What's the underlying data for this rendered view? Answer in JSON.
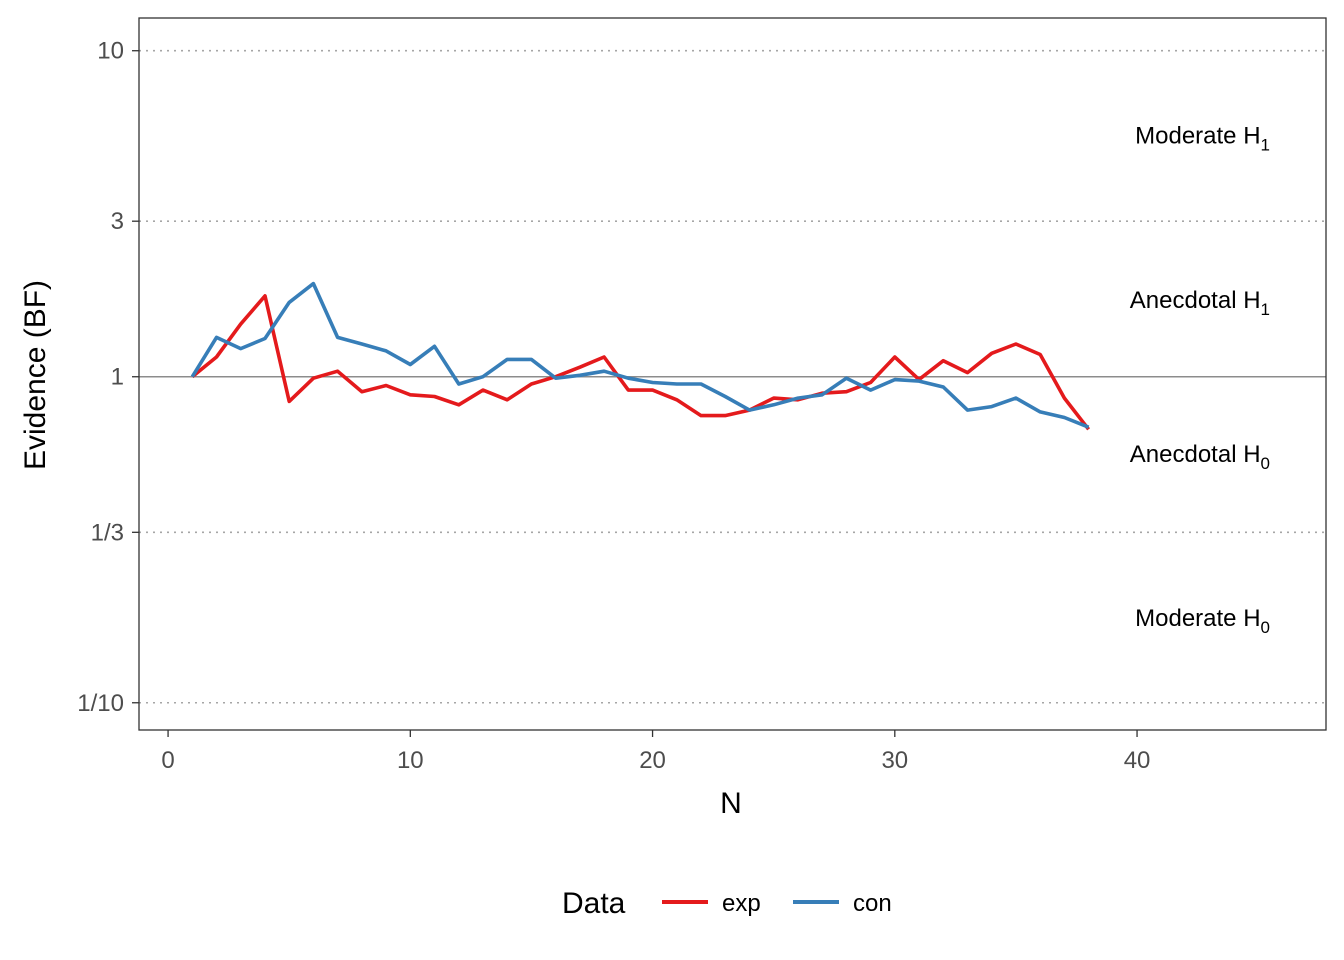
{
  "chart_data": {
    "type": "line",
    "xlabel": "N",
    "ylabel": "Evidence (BF)",
    "y_scale": "log",
    "xlim": [
      -1.2,
      47.8
    ],
    "ylim": [
      0.0825,
      12.6
    ],
    "x_ticks": [
      0,
      10,
      20,
      30,
      40
    ],
    "y_ticks": [
      {
        "value": 10,
        "label": "10"
      },
      {
        "value": 3,
        "label": "3"
      },
      {
        "value": 1,
        "label": "1"
      },
      {
        "value": 0.3333,
        "label": "1/3"
      },
      {
        "value": 0.1,
        "label": "1/10"
      }
    ],
    "reference_lines": [
      {
        "value": 10,
        "style": "dotted"
      },
      {
        "value": 3,
        "style": "dotted"
      },
      {
        "value": 1,
        "style": "solid"
      },
      {
        "value": 0.3333,
        "style": "dotted"
      },
      {
        "value": 0.1,
        "style": "dotted"
      }
    ],
    "region_labels": [
      {
        "text": "Moderate H",
        "sub": "1",
        "y": 5.5
      },
      {
        "text": "Anecdotal H",
        "sub": "1",
        "y": 1.72
      },
      {
        "text": "Anecdotal H",
        "sub": "0",
        "y": 0.58
      },
      {
        "text": "Moderate H",
        "sub": "0",
        "y": 0.182
      }
    ],
    "legend": {
      "title": "Data",
      "position": "bottom"
    },
    "grid": false,
    "series": [
      {
        "name": "exp",
        "color": "#E41A1C",
        "x": [
          1,
          2,
          3,
          4,
          5,
          6,
          7,
          8,
          9,
          10,
          11,
          12,
          13,
          14,
          15,
          16,
          17,
          18,
          19,
          20,
          21,
          22,
          23,
          24,
          25,
          26,
          27,
          28,
          29,
          30,
          31,
          32,
          33,
          34,
          35,
          36,
          37,
          38
        ],
        "y": [
          1.0,
          1.15,
          1.45,
          1.77,
          0.84,
          0.99,
          1.04,
          0.9,
          0.94,
          0.88,
          0.87,
          0.82,
          0.91,
          0.85,
          0.95,
          1.0,
          1.07,
          1.15,
          0.91,
          0.91,
          0.85,
          0.76,
          0.76,
          0.79,
          0.86,
          0.85,
          0.89,
          0.9,
          0.96,
          1.15,
          0.98,
          1.12,
          1.03,
          1.18,
          1.26,
          1.17,
          0.86,
          0.69
        ]
      },
      {
        "name": "con",
        "color": "#377EB8",
        "x": [
          1,
          2,
          3,
          4,
          5,
          6,
          7,
          8,
          9,
          10,
          11,
          12,
          13,
          14,
          15,
          16,
          17,
          18,
          19,
          20,
          21,
          22,
          23,
          24,
          25,
          26,
          27,
          28,
          29,
          30,
          31,
          32,
          33,
          34,
          35,
          36,
          37,
          38
        ],
        "y": [
          1.0,
          1.32,
          1.22,
          1.31,
          1.69,
          1.93,
          1.32,
          1.26,
          1.2,
          1.09,
          1.24,
          0.95,
          1.0,
          1.13,
          1.13,
          0.99,
          1.01,
          1.04,
          0.99,
          0.96,
          0.95,
          0.95,
          0.87,
          0.79,
          0.82,
          0.86,
          0.88,
          0.99,
          0.91,
          0.98,
          0.97,
          0.93,
          0.79,
          0.81,
          0.86,
          0.78,
          0.75,
          0.7
        ]
      }
    ]
  }
}
